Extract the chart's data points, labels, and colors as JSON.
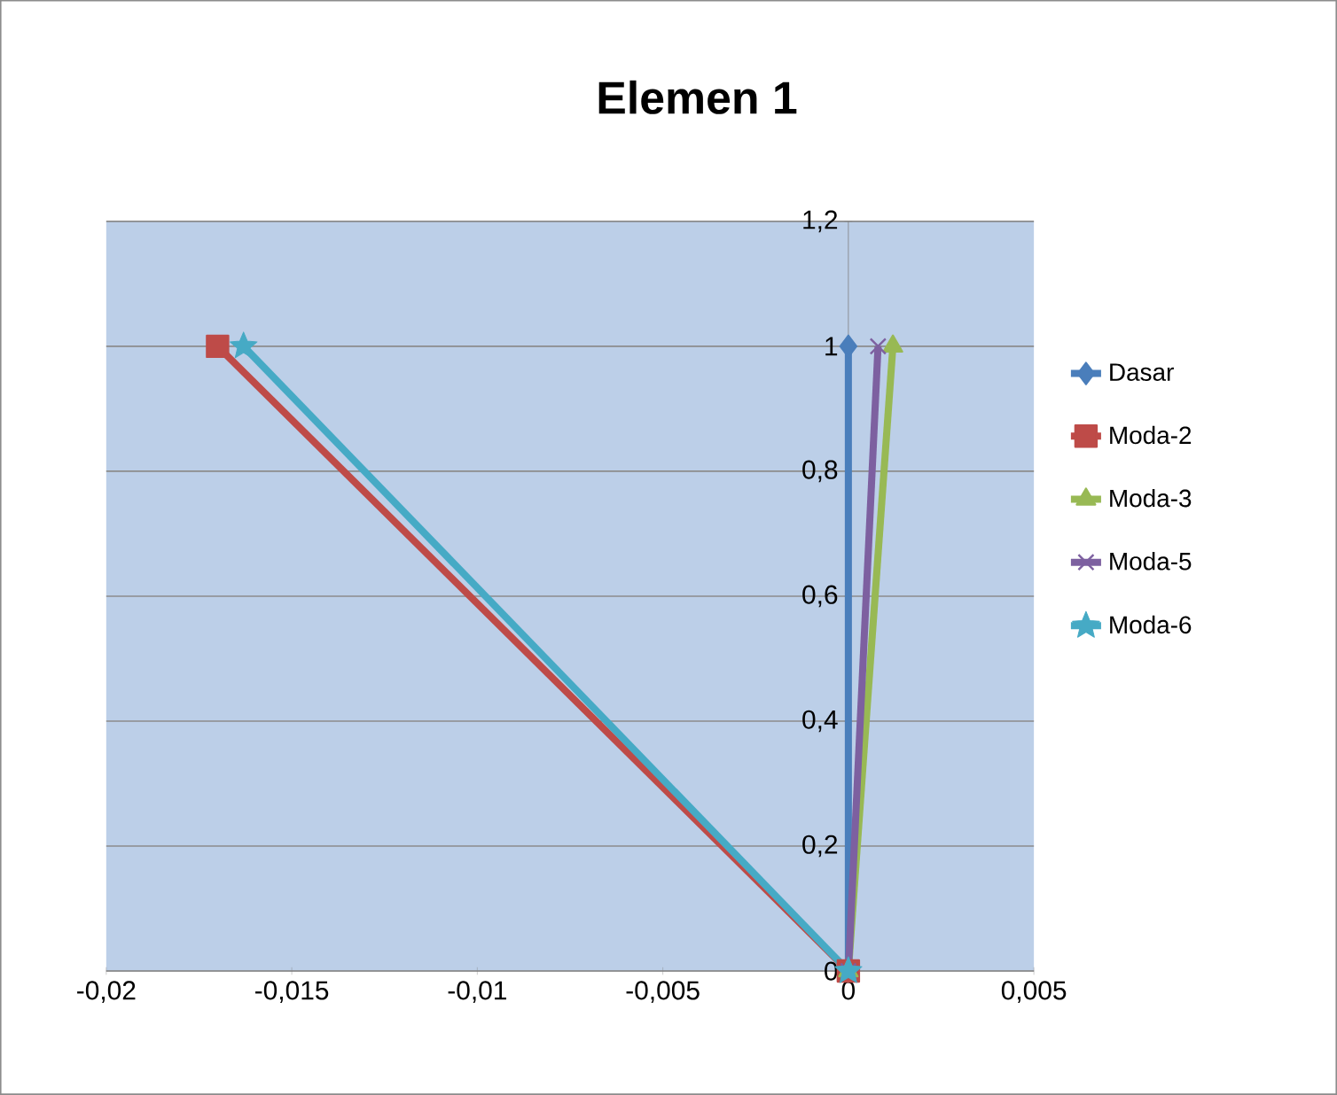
{
  "chart_data": {
    "type": "line",
    "title": "Elemen 1",
    "xlim": [
      -0.02,
      0.005
    ],
    "ylim": [
      0,
      1.2
    ],
    "xticks": [
      {
        "value": -0.02,
        "label": "-0,02"
      },
      {
        "value": -0.015,
        "label": "-0,015"
      },
      {
        "value": -0.01,
        "label": "-0,01"
      },
      {
        "value": -0.005,
        "label": "-0,005"
      },
      0,
      {
        "value": 0.005,
        "label": "0,005"
      }
    ],
    "yticks": [
      0,
      {
        "value": 0.2,
        "label": "0,2"
      },
      {
        "value": 0.4,
        "label": "0,4"
      },
      {
        "value": 0.6,
        "label": "0,6"
      },
      {
        "value": 0.8,
        "label": "0,8"
      },
      1,
      {
        "value": 1.2,
        "label": "1,2"
      }
    ],
    "grid": "y",
    "legend": "right",
    "line_style": "solid",
    "series": [
      {
        "name": "Dasar",
        "color": "#4a7ebb",
        "marker": "diamond",
        "x": [
          0,
          0
        ],
        "values": [
          0,
          1
        ]
      },
      {
        "name": "Moda-2",
        "color": "#be4b48",
        "marker": "square",
        "x": [
          0,
          -0.017
        ],
        "values": [
          0,
          1
        ]
      },
      {
        "name": "Moda-3",
        "color": "#98b954",
        "marker": "triangle",
        "x": [
          0,
          0.0012
        ],
        "values": [
          0,
          1
        ]
      },
      {
        "name": "Moda-5",
        "color": "#7d60a0",
        "marker": "cross",
        "x": [
          0,
          0.0008
        ],
        "values": [
          0,
          1
        ]
      },
      {
        "name": "Moda-6",
        "color": "#46aac5",
        "marker": "star",
        "x": [
          0,
          -0.0163
        ],
        "values": [
          0,
          1
        ]
      }
    ]
  }
}
